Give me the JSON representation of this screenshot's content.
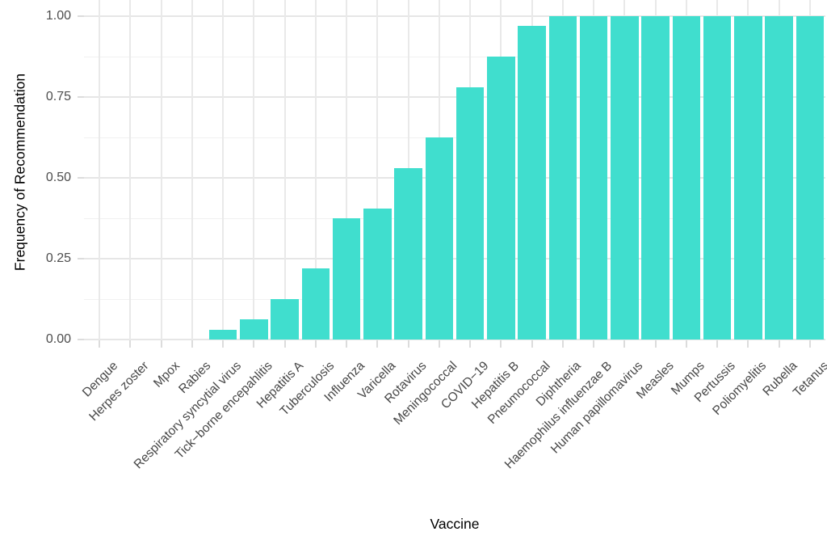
{
  "chart_data": {
    "type": "bar",
    "title": "",
    "xlabel": "Vaccine",
    "ylabel": "Frequency of Recommendation",
    "categories": [
      "Dengue",
      "Herpes zoster",
      "Mpox",
      "Rabies",
      "Respiratory syncytial virus",
      "Tick−borne encepahlitis",
      "Hepatitis A",
      "Tuberculosis",
      "Influenza",
      "Varicella",
      "Rotavirus",
      "Meningococcal",
      "COVID−19",
      "Hepatitis B",
      "Pneumococcal",
      "Diphtheria",
      "Haemophilus influenzae B",
      "Human papillomavirus",
      "Measles",
      "Mumps",
      "Pertussis",
      "Poliomyelitis",
      "Rubella",
      "Tetanus"
    ],
    "values": [
      0,
      0,
      0,
      0,
      0.031,
      0.063,
      0.125,
      0.219,
      0.375,
      0.406,
      0.531,
      0.625,
      0.781,
      0.875,
      0.969,
      1.0,
      1.0,
      1.0,
      1.0,
      1.0,
      1.0,
      1.0,
      1.0,
      1.0
    ],
    "ytick_labels": [
      "0.00",
      "0.25",
      "0.50",
      "0.75",
      "1.00"
    ],
    "ytick_values": [
      0,
      0.25,
      0.5,
      0.75,
      1.0
    ],
    "minor_tick_values": [
      0.125,
      0.375,
      0.625,
      0.875
    ],
    "ylim": [
      0,
      1.05
    ],
    "grid": "major+minor, light gray on white",
    "legend": "none",
    "bar_color": "#40DECE"
  },
  "colors": {
    "bar": "#40DECE",
    "grid_major": "#e6e6e6",
    "grid_minor": "#f1f1f1",
    "axis_tick": "#dcdcdc",
    "tick_label_text": "#4d4d4d",
    "axis_title_text": "#000000",
    "background": "#ffffff"
  }
}
